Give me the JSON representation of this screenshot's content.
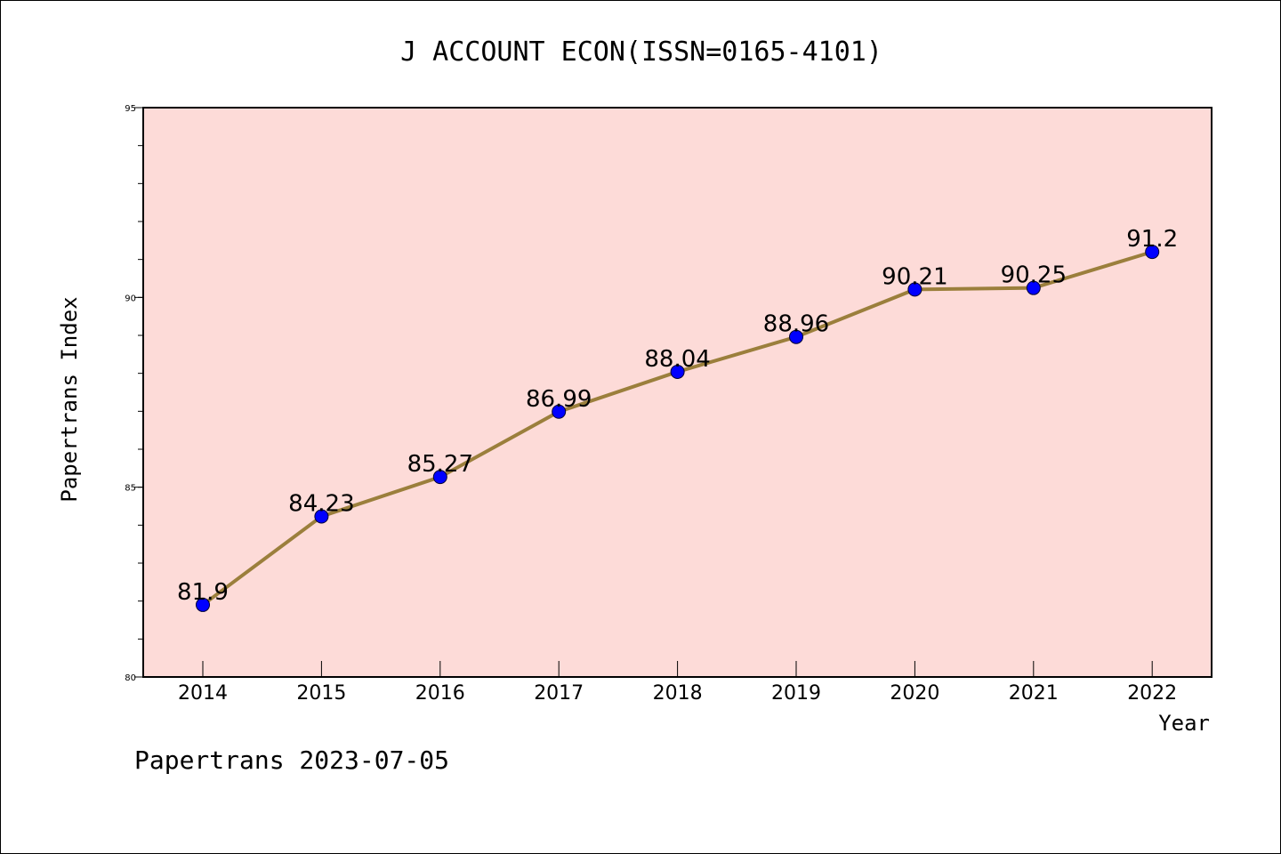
{
  "chart_data": {
    "type": "line",
    "title": "J ACCOUNT ECON(ISSN=0165-4101)",
    "xlabel": "Year",
    "ylabel": "Papertrans Index",
    "categories": [
      "2014",
      "2015",
      "2016",
      "2017",
      "2018",
      "2019",
      "2020",
      "2021",
      "2022"
    ],
    "series": [
      {
        "values": [
          81.9,
          84.23,
          85.27,
          86.99,
          88.04,
          88.96,
          90.21,
          90.25,
          91.2
        ],
        "labels": [
          "81.9",
          "84.23",
          "85.27",
          "86.99",
          "88.04",
          "88.96",
          "90.21",
          "90.25",
          "91.2"
        ]
      }
    ],
    "ylim": [
      80,
      95
    ],
    "yticks": [
      "80",
      "85",
      "90",
      "95"
    ],
    "grid": false,
    "colors": {
      "plot_background": "#fddbd8",
      "line": "#9b7f3c",
      "marker": "#0000ff"
    }
  },
  "footer": "Papertrans 2023-07-05"
}
